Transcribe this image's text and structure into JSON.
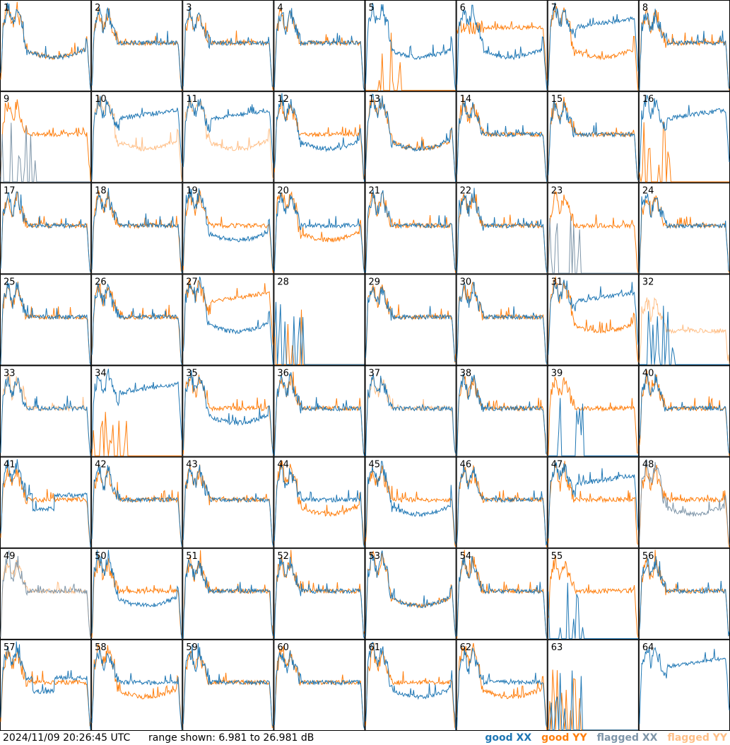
{
  "chart_data": {
    "type": "line",
    "layout": "8x8 small multiples",
    "tiles": [
      "1",
      "2",
      "3",
      "4",
      "5",
      "6",
      "7",
      "8",
      "9",
      "10",
      "11",
      "12",
      "13",
      "14",
      "15",
      "16",
      "17",
      "18",
      "19",
      "20",
      "21",
      "22",
      "23",
      "24",
      "25",
      "26",
      "27",
      "28",
      "29",
      "30",
      "31",
      "32",
      "33",
      "34",
      "35",
      "36",
      "37",
      "38",
      "39",
      "40",
      "41",
      "42",
      "43",
      "44",
      "45",
      "46",
      "47",
      "48",
      "49",
      "50",
      "51",
      "52",
      "53",
      "54",
      "55",
      "56",
      "57",
      "58",
      "59",
      "60",
      "61",
      "62",
      "63",
      "64"
    ],
    "range_db": [
      6.981,
      26.981
    ],
    "series": [
      {
        "name": "good XX",
        "color": "#1f77b4"
      },
      {
        "name": "good YY",
        "color": "#ff7f0e"
      },
      {
        "name": "flagged XX",
        "color": "#7f96a9"
      },
      {
        "name": "flagged YY",
        "color": "#ffbf87"
      }
    ],
    "flagged": {
      "xx": [
        "9",
        "23",
        "48",
        "49"
      ],
      "yy": [
        "10",
        "11",
        "32",
        "33",
        "37",
        "49"
      ]
    },
    "profiles_xx": {
      "1": "low",
      "5": "low",
      "6": "low",
      "7": "high",
      "8": "mid",
      "10": "high",
      "11": "high",
      "12": "low",
      "13": "low",
      "19": "low",
      "24": "mid",
      "27": "low",
      "31": "high",
      "34": "high",
      "35": "low",
      "44": "mid",
      "45": "low",
      "47": "high",
      "48": "low",
      "50": "low",
      "53": "low",
      "55": "dead",
      "57": "dip",
      "41": "dip",
      "61": "low",
      "62": "mid",
      "63": "dead",
      "64": "high",
      "9": "dead",
      "16": "high",
      "28": "dead",
      "32": "dead",
      "39": "dead",
      "23": "dead"
    },
    "profiles_yy": {
      "1": "low",
      "5": "dead",
      "6": "flatTop",
      "7": "low",
      "8": "mid",
      "10": "low",
      "11": "low",
      "12": "mid",
      "13": "low",
      "24": "mid",
      "27": "high",
      "31": "low",
      "34": "dead",
      "35": "mid",
      "44": "low",
      "45": "mid",
      "47": "mid",
      "48": "mid",
      "50": "mid",
      "53": "low",
      "55": "mid",
      "61": "mid",
      "62": "low",
      "63": "dead",
      "64": "none",
      "16": "dead",
      "28": "dead",
      "39": "mid",
      "20": "low",
      "19": "mid",
      "18": "mid",
      "3": "mid",
      "60": "mid",
      "58": "low",
      "59": "mid",
      "32": "noisy",
      "23": "mid"
    }
  },
  "footer": {
    "timestamp": "2024/11/09 20:26:45 UTC",
    "range_text": "range shown: 6.981 to 26.981 dB"
  },
  "legend": {
    "good_xx": "good XX",
    "good_yy": "good YY",
    "flagged_xx": "flagged XX",
    "flagged_yy": "flagged YY"
  }
}
